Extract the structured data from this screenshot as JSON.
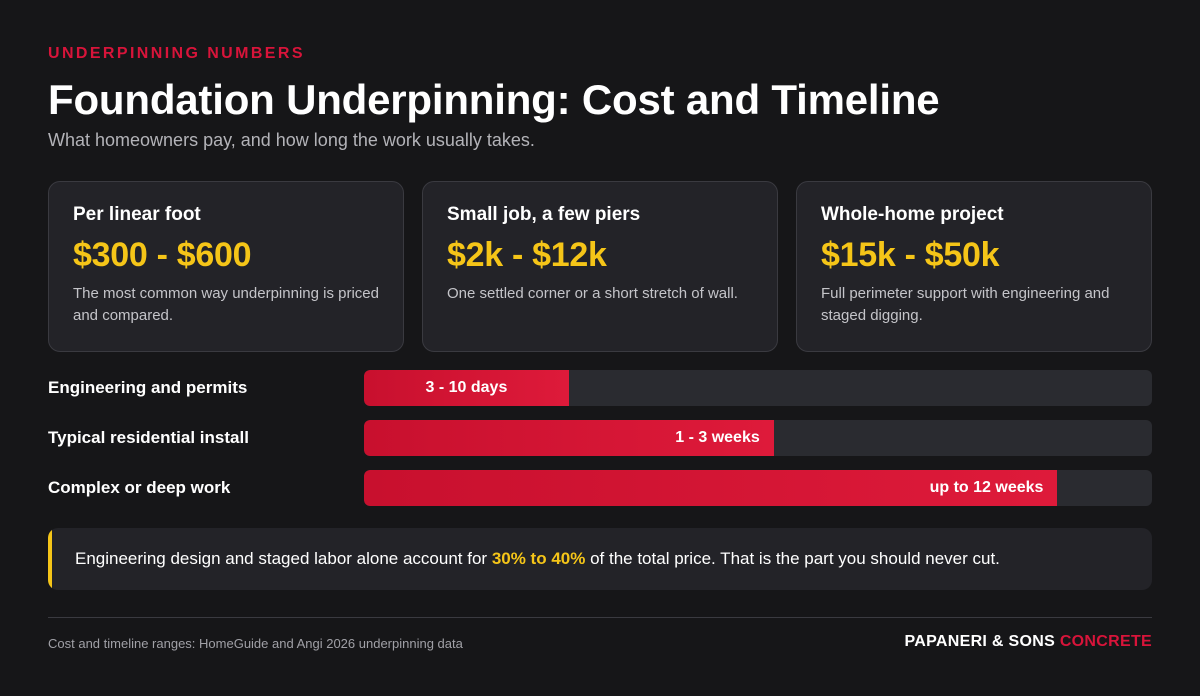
{
  "header": {
    "eyebrow": "UNDERPINNING NUMBERS",
    "title": "Foundation Underpinning: Cost and Timeline",
    "subtitle": "What homeowners pay, and how long the work usually takes."
  },
  "cards": [
    {
      "label": "Per linear foot",
      "value": "$300 - $600",
      "description": "The most common way underpinning is priced and compared."
    },
    {
      "label": "Small job, a few piers",
      "value": "$2k - $12k",
      "description": "One settled corner or a short stretch of wall."
    },
    {
      "label": "Whole-home project",
      "value": "$15k - $50k",
      "description": "Full perimeter support with engineering and staged digging."
    }
  ],
  "timeline": [
    {
      "label": "Engineering and permits",
      "value": "3 - 10 days",
      "fill_fraction": 0.26
    },
    {
      "label": "Typical residential install",
      "value": "1 - 3 weeks",
      "fill_fraction": 0.52
    },
    {
      "label": "Complex or deep work",
      "value": "up to 12 weeks",
      "fill_fraction": 0.88
    }
  ],
  "callout": {
    "text_before": "Engineering design and staged labor alone account for ",
    "highlight": "30% to 40%",
    "text_after": " of the total price. That is the part you should never cut."
  },
  "footer": {
    "source": "Cost and timeline ranges: HomeGuide and Angi 2026 underpinning data",
    "brand_main": "PAPANERI & SONS ",
    "brand_accent": "CONCRETE"
  },
  "colors": {
    "background": "#161618",
    "accent_red": "#d8143a",
    "accent_yellow": "#f5c518",
    "card_bg": "#232328",
    "track_bg": "#2a2b30"
  }
}
